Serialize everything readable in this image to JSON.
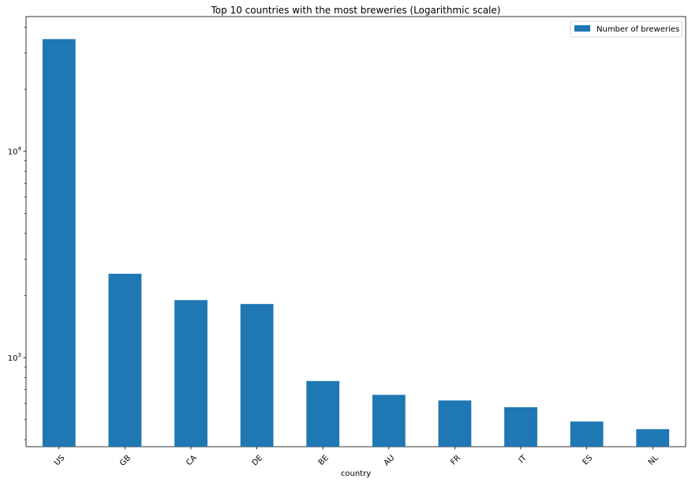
{
  "chart_data": {
    "type": "bar",
    "title": "Top 10 countries with the most breweries (Logarithmic scale)",
    "xlabel": "country",
    "ylabel": "",
    "y_scale": "log",
    "ylim": [
      370,
      45000
    ],
    "y_ticks": [
      {
        "value": 1000,
        "label_base": "10",
        "label_exp": "3"
      },
      {
        "value": 10000,
        "label_base": "10",
        "label_exp": "4"
      }
    ],
    "categories": [
      "US",
      "GB",
      "CA",
      "DE",
      "BE",
      "AU",
      "FR",
      "IT",
      "ES",
      "NL"
    ],
    "series": [
      {
        "name": "Number of breweries",
        "color": "#1f77b4",
        "values": [
          35000,
          2550,
          1900,
          1820,
          770,
          660,
          620,
          575,
          490,
          450
        ]
      }
    ],
    "legend": {
      "position": "top-right",
      "label": "Number of breweries"
    },
    "grid": false,
    "x_tick_rotation": "45deg"
  }
}
